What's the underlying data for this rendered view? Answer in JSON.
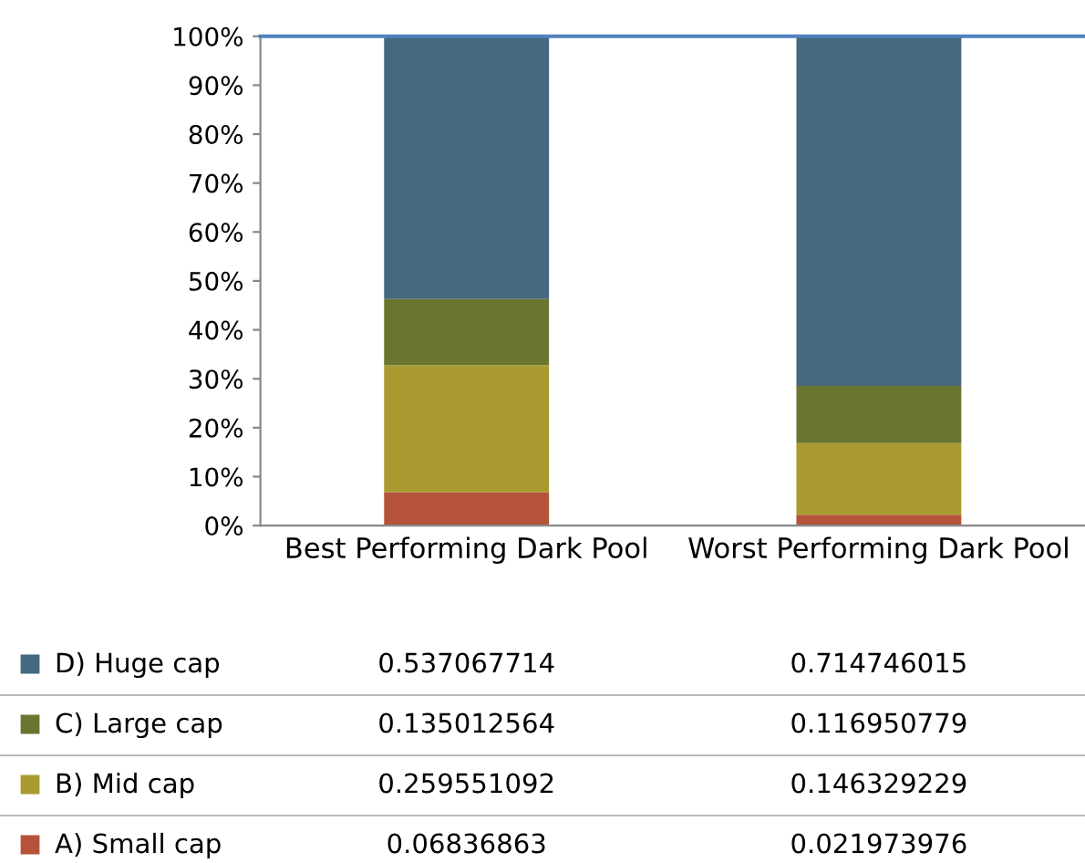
{
  "chart_data": {
    "type": "bar",
    "stacked": true,
    "categories": [
      "Best Performing Dark Pool",
      "Worst Performing Dark Pool"
    ],
    "series": [
      {
        "name": "A) Small cap",
        "color": "#b4533a",
        "values": [
          0.06836863,
          0.021973976
        ]
      },
      {
        "name": "B) Mid cap",
        "color": "#a99b32",
        "values": [
          0.259551092,
          0.146329229
        ]
      },
      {
        "name": "C) Large cap",
        "color": "#6a7530",
        "values": [
          0.135012564,
          0.116950779
        ]
      },
      {
        "name": "D) Huge cap",
        "color": "#45697e",
        "values": [
          0.537067714,
          0.714746015
        ]
      }
    ],
    "ylim": [
      0,
      1
    ],
    "yticks": [
      {
        "value": 0,
        "label": "0%"
      },
      {
        "value": 0.1,
        "label": "10%"
      },
      {
        "value": 0.2,
        "label": "20%"
      },
      {
        "value": 0.3,
        "label": "30%"
      },
      {
        "value": 0.4,
        "label": "40%"
      },
      {
        "value": 0.5,
        "label": "50%"
      },
      {
        "value": 0.6,
        "label": "60%"
      },
      {
        "value": 0.7,
        "label": "70%"
      },
      {
        "value": 0.8,
        "label": "80%"
      },
      {
        "value": 0.9,
        "label": "90%"
      },
      {
        "value": 1,
        "label": "100%"
      }
    ],
    "grid": false,
    "legend": "bottom",
    "data_labels": true
  }
}
